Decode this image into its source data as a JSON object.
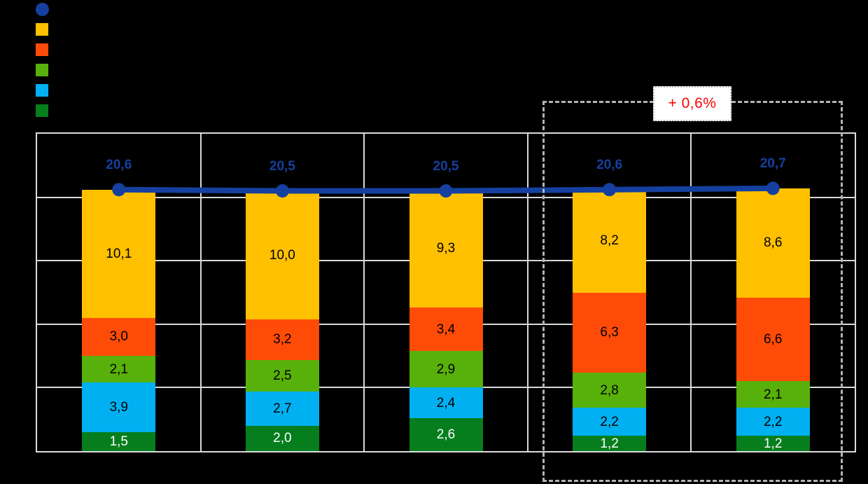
{
  "background_color": "#000000",
  "annotation": {
    "text": "+ 0,6%",
    "text_color": "#FF0000"
  },
  "legend": {
    "items": [
      {
        "name": "total-line-marker",
        "marker": "circle",
        "color": "#15409F",
        "label": ""
      },
      {
        "name": "yellow-series-marker",
        "marker": "square",
        "color": "#FFC000",
        "label": ""
      },
      {
        "name": "orange-series-marker",
        "marker": "square",
        "color": "#FF4B08",
        "label": ""
      },
      {
        "name": "green-series-marker",
        "marker": "square",
        "color": "#58B00A",
        "label": ""
      },
      {
        "name": "light-blue-series-marker",
        "marker": "square",
        "color": "#00B0F0",
        "label": ""
      },
      {
        "name": "dark-green-series-marker",
        "marker": "square",
        "color": "#067E1E",
        "label": ""
      }
    ]
  },
  "chart_data": {
    "type": "bar",
    "subtype": "stacked-columns-with-total-line",
    "title": "",
    "xlabel": "",
    "ylabel": "",
    "categories": [
      "",
      "",
      "",
      "",
      ""
    ],
    "ylim": [
      0,
      25
    ],
    "grid_step": 5,
    "grid": true,
    "legend_position": "top-left",
    "series": [
      {
        "name": "dark-green-series",
        "stack_order": 1,
        "color": "#067E1E",
        "label_color": "#FFFFFF",
        "values": [
          1.5,
          2.0,
          2.6,
          1.2,
          1.2
        ],
        "labels": [
          "1,5",
          "2,0",
          "2,6",
          "1,2",
          "1,2"
        ]
      },
      {
        "name": "light-blue-series",
        "stack_order": 2,
        "color": "#00B0F0",
        "label_color": "#000000",
        "values": [
          3.9,
          2.7,
          2.4,
          2.2,
          2.2
        ],
        "labels": [
          "3,9",
          "2,7",
          "2,4",
          "2,2",
          "2,2"
        ]
      },
      {
        "name": "green-series",
        "stack_order": 3,
        "color": "#58B00A",
        "label_color": "#000000",
        "values": [
          2.1,
          2.5,
          2.9,
          2.8,
          2.1
        ],
        "labels": [
          "2,1",
          "2,5",
          "2,9",
          "2,8",
          "2,1"
        ]
      },
      {
        "name": "orange-series",
        "stack_order": 4,
        "color": "#FF4B08",
        "label_color": "#000000",
        "values": [
          3.0,
          3.2,
          3.4,
          6.3,
          6.6
        ],
        "labels": [
          "3,0",
          "3,2",
          "3,4",
          "6,3",
          "6,6"
        ]
      },
      {
        "name": "yellow-series",
        "stack_order": 5,
        "color": "#FFC000",
        "label_color": "#000000",
        "values": [
          10.1,
          10.0,
          9.3,
          8.2,
          8.6
        ],
        "labels": [
          "10,1",
          "10,0",
          "9,3",
          "8,2",
          "8,6"
        ]
      }
    ],
    "line": {
      "name": "total-line",
      "color": "#15409F",
      "values": [
        20.6,
        20.5,
        20.5,
        20.6,
        20.7
      ],
      "labels": [
        "20,6",
        "20,5",
        "20,5",
        "20,6",
        "20,7"
      ]
    },
    "highlight": {
      "category_start": 3,
      "category_end": 4,
      "annotation": "+ 0,6%"
    }
  }
}
